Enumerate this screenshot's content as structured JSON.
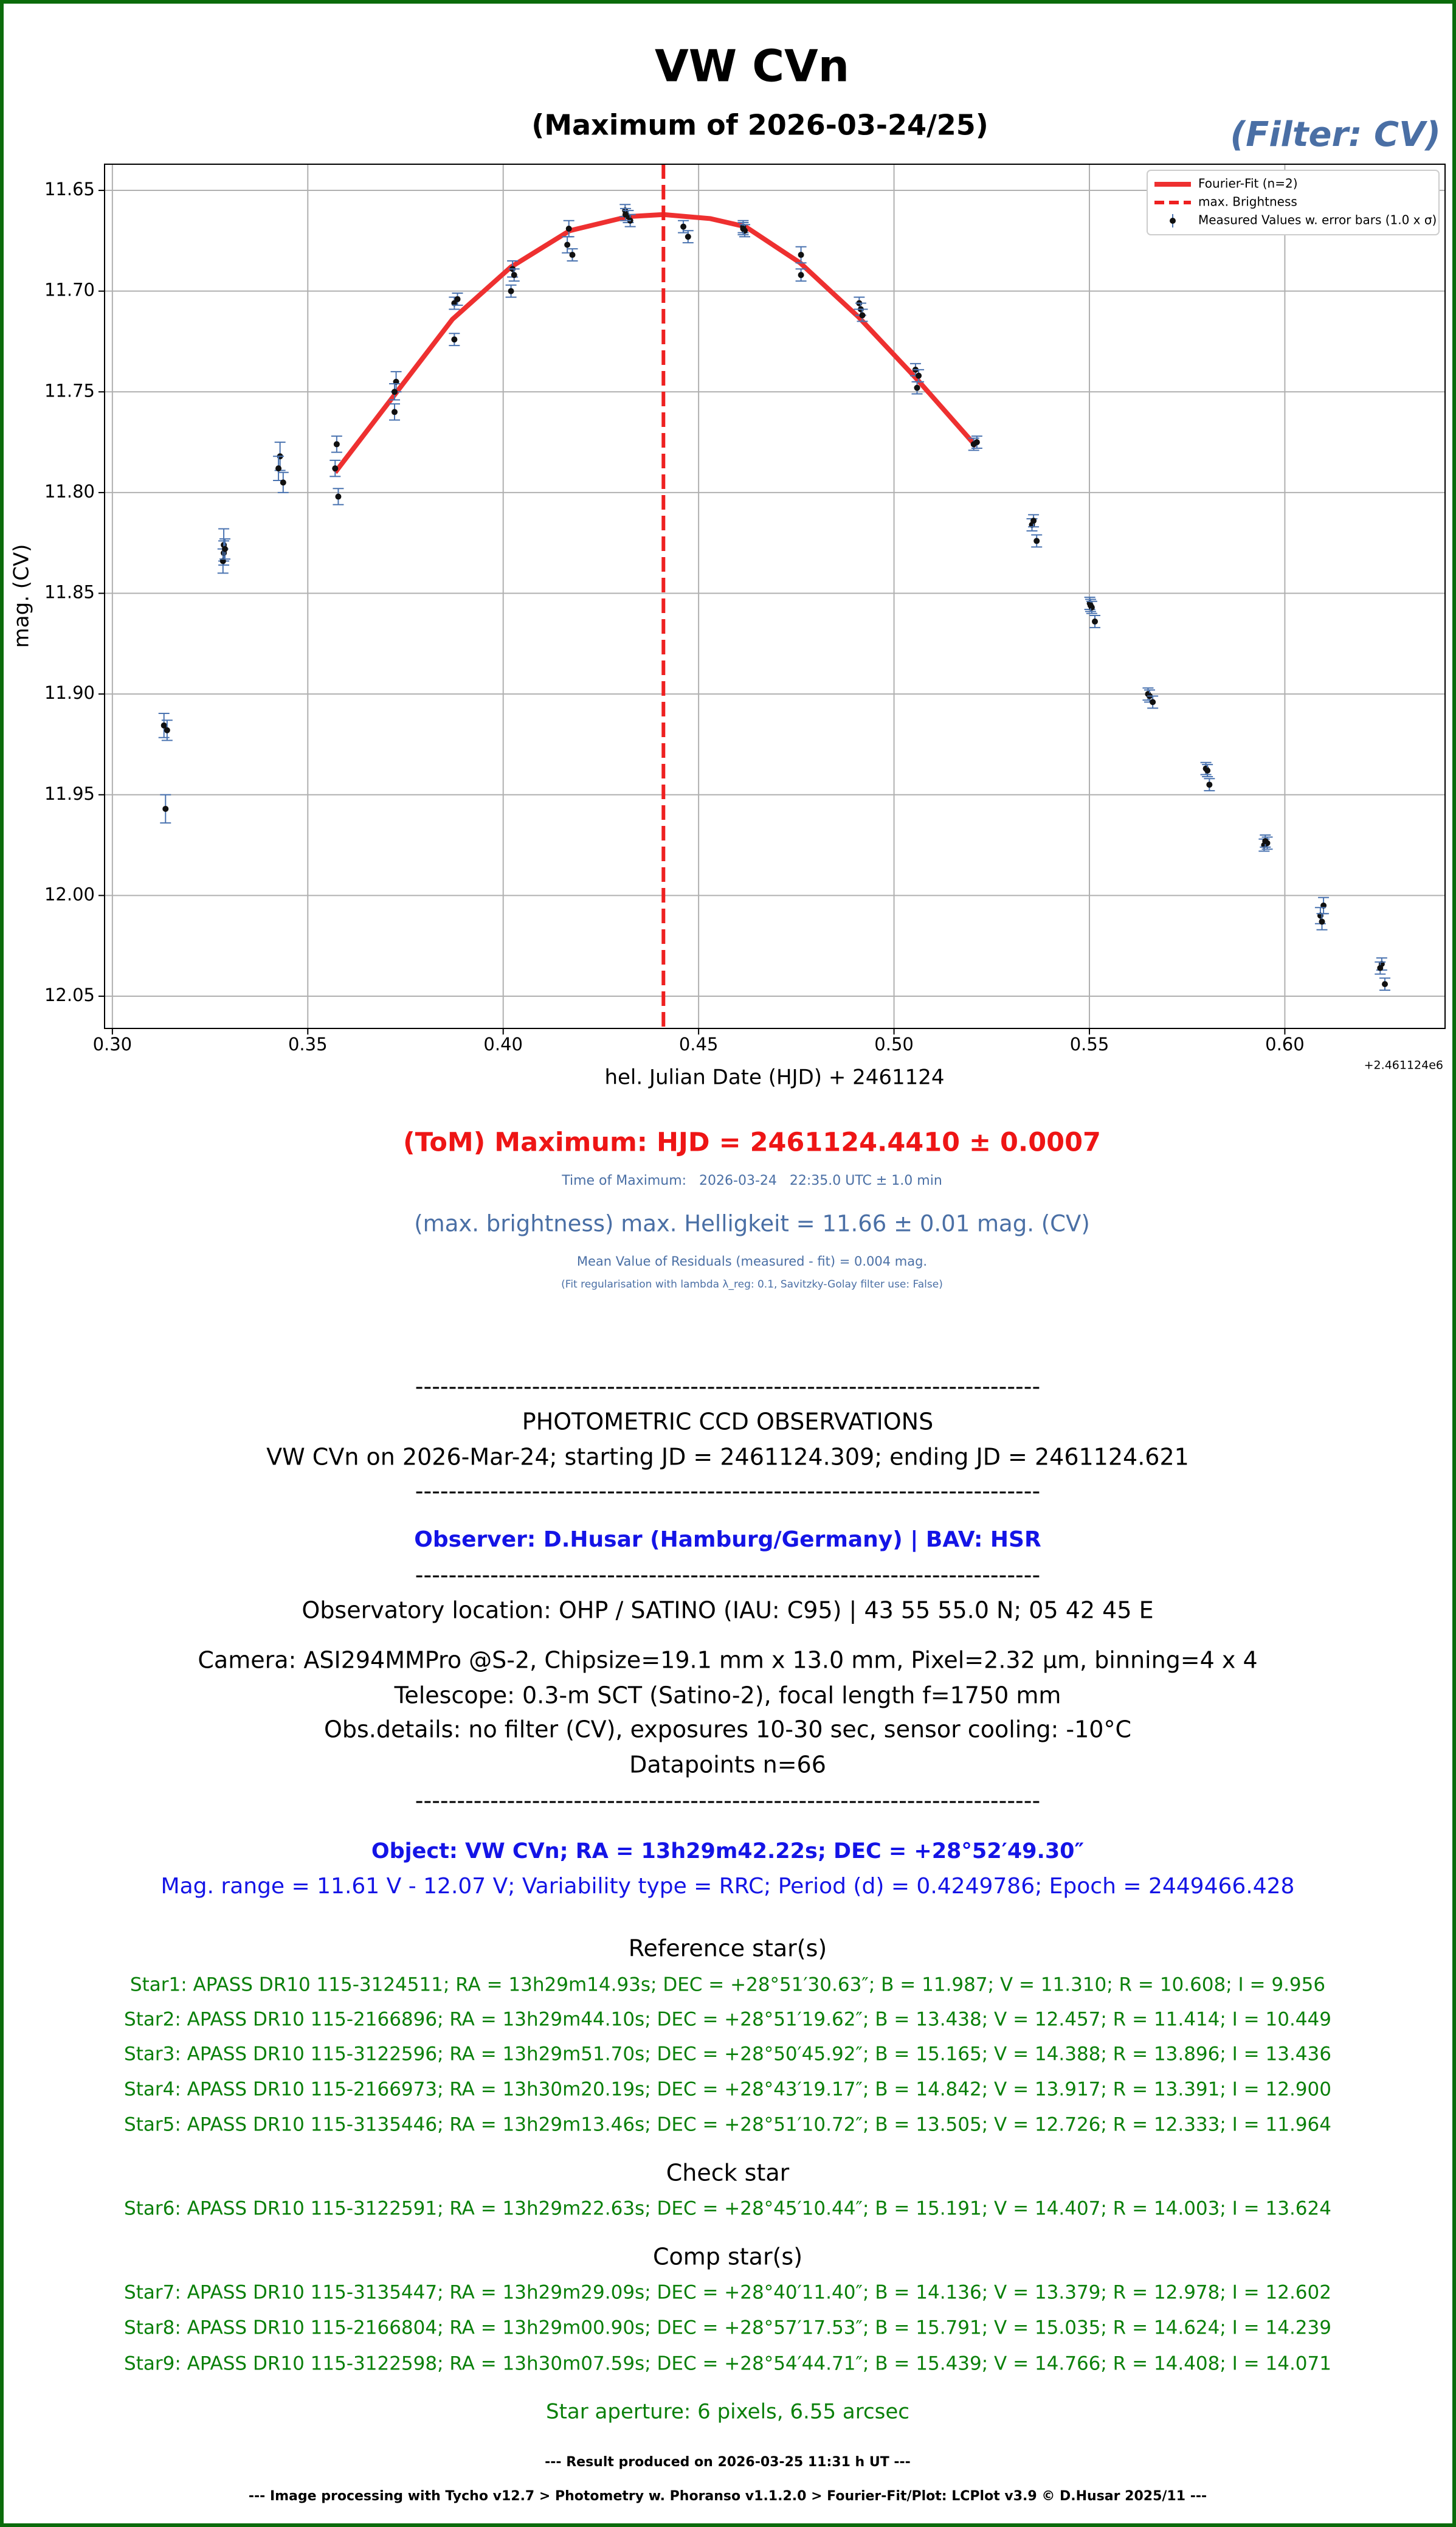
{
  "chart_data": {
    "type": "scatter",
    "title": "VW CVn",
    "subtitle": "(Maximum of 2026-03-24/25)",
    "filter_label": "(Filter: CV)",
    "x_label": "hel. Julian Date (HJD) + 2461124",
    "y_label": "mag. (CV)",
    "x_offset_label": "+2.461124e6",
    "xlim": [
      0.298,
      0.641
    ],
    "ylim": [
      11.637,
      12.066
    ],
    "y_inverted": true,
    "grid": true,
    "legend": "upper right",
    "xticks": [
      {
        "value": 0.3,
        "label": "0.30"
      },
      0.35,
      {
        "value": 0.4,
        "label": "0.40"
      },
      0.45,
      {
        "value": 0.5,
        "label": "0.50"
      },
      0.55,
      {
        "value": 0.6,
        "label": "0.60"
      }
    ],
    "yticks": [
      11.65,
      {
        "value": 11.7,
        "label": "11.70"
      },
      11.75,
      {
        "value": 11.8,
        "label": "11.80"
      },
      11.85,
      {
        "value": 11.9,
        "label": "11.90"
      },
      11.95,
      {
        "value": 12.0,
        "label": "12.00"
      },
      12.05
    ],
    "series": [
      {
        "name": "Fourier-Fit (n=2)",
        "kind": "line",
        "color": "#ee3030",
        "x": [
          0.357,
          0.372,
          0.387,
          0.402,
          0.417,
          0.432,
          0.441,
          0.453,
          0.462,
          0.476,
          0.491,
          0.506,
          0.521
        ],
        "values": [
          11.79,
          11.752,
          11.714,
          11.688,
          11.67,
          11.663,
          11.662,
          11.664,
          11.668,
          11.686,
          11.713,
          11.744,
          11.777
        ]
      },
      {
        "name": "max. Brightness",
        "kind": "vline",
        "color": "#ee2020",
        "x": [
          0.441
        ]
      },
      {
        "name": "Measured Values w. error bars (1.0 x σ)",
        "kind": "errorbar",
        "color": "#111111",
        "error_color": "#4a73b0",
        "x": [
          0.3132,
          0.314,
          0.3136,
          0.3285,
          0.3285,
          0.3283,
          0.3288,
          0.3429,
          0.3425,
          0.3437,
          0.3574,
          0.357,
          0.3578,
          0.3726,
          0.3722,
          0.3722,
          0.3875,
          0.3883,
          0.3875,
          0.4024,
          0.4028,
          0.402,
          0.4168,
          0.4164,
          0.4177,
          0.4312,
          0.432,
          0.4325,
          0.4313,
          0.4461,
          0.4473,
          0.4614,
          0.4618,
          0.4614,
          0.4762,
          0.4762,
          0.4911,
          0.4915,
          0.4919,
          0.5055,
          0.5063,
          0.5059,
          0.5204,
          0.5212,
          0.5353,
          0.5357,
          0.5365,
          0.5501,
          0.5506,
          0.5514,
          0.5503,
          0.565,
          0.5654,
          0.5662,
          0.5798,
          0.5802,
          0.5807,
          0.5947,
          0.5955,
          0.595,
          0.6099,
          0.6091,
          0.6095,
          0.6248,
          0.6244,
          0.6256
        ],
        "values": [
          11.9156,
          11.918,
          11.957,
          11.826,
          11.83,
          11.834,
          11.828,
          11.782,
          11.788,
          11.795,
          11.776,
          11.788,
          11.802,
          11.745,
          11.75,
          11.76,
          11.706,
          11.704,
          11.724,
          11.689,
          11.692,
          11.7,
          11.669,
          11.677,
          11.682,
          11.66,
          11.663,
          11.665,
          11.662,
          11.668,
          11.673,
          11.668,
          11.67,
          11.669,
          11.682,
          11.692,
          11.706,
          11.709,
          11.712,
          11.739,
          11.742,
          11.748,
          11.776,
          11.775,
          11.816,
          11.814,
          11.824,
          11.855,
          11.857,
          11.864,
          11.856,
          11.9,
          11.901,
          11.904,
          11.937,
          11.938,
          11.945,
          11.975,
          11.974,
          11.973,
          12.005,
          12.01,
          12.013,
          12.034,
          12.036,
          12.044
        ],
        "errors": [
          0.006,
          0.005,
          0.007,
          0.008,
          0.006,
          0.006,
          0.005,
          0.007,
          0.006,
          0.005,
          0.004,
          0.004,
          0.004,
          0.005,
          0.004,
          0.004,
          0.003,
          0.003,
          0.003,
          0.004,
          0.003,
          0.003,
          0.004,
          0.004,
          0.003,
          0.003,
          0.003,
          0.003,
          0.003,
          0.003,
          0.003,
          0.003,
          0.003,
          0.003,
          0.004,
          0.003,
          0.003,
          0.003,
          0.003,
          0.003,
          0.003,
          0.003,
          0.003,
          0.003,
          0.003,
          0.003,
          0.003,
          0.003,
          0.003,
          0.003,
          0.003,
          0.003,
          0.003,
          0.003,
          0.003,
          0.003,
          0.003,
          0.003,
          0.003,
          0.003,
          0.004,
          0.004,
          0.004,
          0.003,
          0.003,
          0.003
        ]
      }
    ]
  },
  "report": {
    "tom": "(ToM) Maximum: HJD = 2461124.4410 ± 0.0007",
    "time_of_max": "Time of Maximum:   2026-03-24   22:35.0 UTC ± 1.0 min",
    "max_brightness": "(max. brightness) max. Helligkeit = 11.66 ± 0.01 mag. (CV)",
    "residuals": "Mean Value of Residuals (measured - fit) = 0.004 mag.",
    "regularisation": "(Fit regularisation with lambda λ_reg: 0.1, Savitzky-Golay filter use: False)",
    "separator": "---------------------------------------------------------------------------",
    "section_title": "PHOTOMETRIC CCD OBSERVATIONS",
    "run": "VW CVn on 2026-Mar-24; starting JD = 2461124.309; ending JD = 2461124.621",
    "observer": "Observer: D.Husar (Hamburg/Germany) | BAV: HSR",
    "observatory": "Observatory location: OHP / SATINO (IAU: C95) | 43 55 55.0 N; 05 42 45 E",
    "camera": "Camera: ASI294MMPro @S-2, Chipsize=19.1 mm x 13.0 mm, Pixel=2.32 µm, binning=4 x 4",
    "telescope": "Telescope: 0.3-m SCT (Satino-2), focal length f=1750 mm",
    "obs_details": "Obs.details: no filter (CV), exposures 10-30 sec, sensor cooling: -10°C",
    "datapoints": "Datapoints n=66",
    "object": "Object: VW CVn; RA = 13h29m42.22s; DEC = +28°52′49.30″",
    "mag_range": "Mag. range = 11.61 V - 12.07 V; Variability type = RRC; Period (d) = 0.4249786; Epoch = 2449466.428",
    "reference_title": "Reference star(s)",
    "reference_stars": [
      "Star1: APASS DR10 115-3124511; RA = 13h29m14.93s; DEC = +28°51′30.63″; B = 11.987; V = 11.310; R = 10.608; I = 9.956",
      "Star2: APASS DR10 115-2166896; RA = 13h29m44.10s; DEC = +28°51′19.62″; B = 13.438; V = 12.457; R = 11.414; I = 10.449",
      "Star3: APASS DR10 115-3122596; RA = 13h29m51.70s; DEC = +28°50′45.92″; B = 15.165; V = 14.388; R = 13.896; I = 13.436",
      "Star4: APASS DR10 115-2166973; RA = 13h30m20.19s; DEC = +28°43′19.17″; B = 14.842; V = 13.917; R = 13.391; I = 12.900",
      "Star5: APASS DR10 115-3135446; RA = 13h29m13.46s; DEC = +28°51′10.72″; B = 13.505; V = 12.726; R = 12.333; I = 11.964"
    ],
    "check_title": "Check star",
    "check_stars": [
      "Star6: APASS DR10 115-3122591; RA = 13h29m22.63s; DEC = +28°45′10.44″; B = 15.191; V = 14.407; R = 14.003; I = 13.624"
    ],
    "comp_title": "Comp star(s)",
    "comp_stars": [
      "Star7: APASS DR10 115-3135447; RA = 13h29m29.09s; DEC = +28°40′11.40″; B = 14.136; V = 13.379; R = 12.978; I = 12.602",
      "Star8: APASS DR10 115-2166804; RA = 13h29m00.90s; DEC = +28°57′17.53″; B = 15.791; V = 15.035; R = 14.624; I = 14.239",
      "Star9: APASS DR10 115-3122598; RA = 13h30m07.59s; DEC = +28°54′44.71″; B = 15.439; V = 14.766; R = 14.408; I = 14.071"
    ],
    "aperture": "Star aperture: 6 pixels, 6.55 arcsec",
    "result": "--- Result produced on 2026-03-25 11:31 h UT ---",
    "processing": "--- Image processing with Tycho v12.7 > Photometry w. Phoranso v1.1.2.0 > Fourier-Fit/Plot: LCPlot v3.9 © D.Husar 2025/11 ---"
  }
}
